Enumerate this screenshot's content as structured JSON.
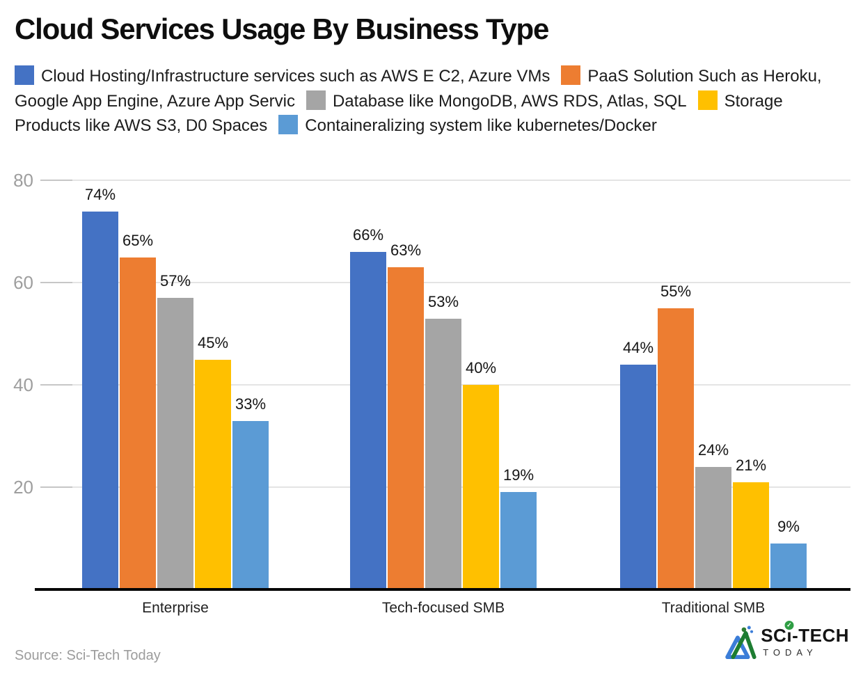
{
  "title": "Cloud Services Usage By Business Type",
  "source": "Source: Sci-Tech Today",
  "logo": {
    "brand_pre": "SC",
    "brand_i": "ı",
    "brand_post": "-TECH",
    "check": "✓",
    "subtitle": "TODAY"
  },
  "chart_data": {
    "type": "bar",
    "title": "Cloud Services Usage By Business Type",
    "categories": [
      "Enterprise",
      "Tech-focused SMB",
      "Traditional SMB"
    ],
    "series": [
      {
        "name": "Cloud Hosting/Infrastructure services such as AWS E C2, Azure VMs",
        "color": "#4472C4",
        "values": [
          74,
          66,
          44
        ]
      },
      {
        "name": "PaaS Solution Such as Heroku, Google App Engine, Azure App Servic",
        "color": "#ED7D31",
        "values": [
          65,
          63,
          55
        ]
      },
      {
        "name": "Database like MongoDB, AWS RDS, Atlas, SQL",
        "color": "#A5A5A5",
        "values": [
          57,
          53,
          24
        ]
      },
      {
        "name": "Storage Products like AWS S3, D0 Spaces",
        "color": "#FFC000",
        "values": [
          45,
          40,
          21
        ]
      },
      {
        "name": "Containeralizing system like kubernetes/Docker",
        "color": "#5B9BD5",
        "values": [
          33,
          19,
          9
        ]
      }
    ],
    "value_suffix": "%",
    "xlabel": "",
    "ylabel": "",
    "ylim": [
      0,
      84
    ],
    "yticks": [
      20,
      40,
      60,
      80
    ],
    "grid": true,
    "legend_position": "top"
  }
}
